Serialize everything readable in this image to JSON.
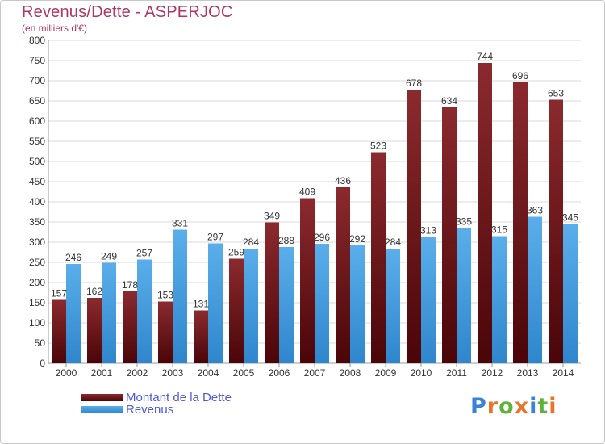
{
  "title": "Revenus/Dette - ASPERJOC",
  "subtitle": "(en milliers d'€)",
  "colors": {
    "debt_top": "#8b2a2e",
    "debt_bottom": "#4a0508",
    "revenue_top": "#5aaeea",
    "revenue_bottom": "#2f86cc",
    "grid": "#d8d8d8",
    "title": "#b23460",
    "legend_text": "#4d5bd9"
  },
  "logo": {
    "letters": [
      "P",
      "r",
      "o",
      "x",
      "i",
      "t",
      "i"
    ],
    "colors": [
      "#3b82d6",
      "#e8742a",
      "#5fb33a",
      "#e8742a",
      "#3b82d6",
      "#5fb33a",
      "#e8742a"
    ]
  },
  "chart_data": {
    "type": "bar",
    "title": "Revenus/Dette - ASPERJOC",
    "subtitle": "(en milliers d'€)",
    "categories": [
      "2000",
      "2001",
      "2002",
      "2003",
      "2004",
      "2005",
      "2006",
      "2007",
      "2008",
      "2009",
      "2010",
      "2011",
      "2012",
      "2013",
      "2014"
    ],
    "series": [
      {
        "name": "Montant de la Dette",
        "values": [
          157,
          162,
          178,
          153,
          131,
          259,
          349,
          409,
          436,
          523,
          678,
          634,
          744,
          696,
          653
        ]
      },
      {
        "name": "Revenus",
        "values": [
          246,
          249,
          257,
          331,
          297,
          284,
          288,
          296,
          292,
          284,
          313,
          335,
          315,
          363,
          345
        ]
      }
    ],
    "ylim": [
      0,
      800
    ],
    "yticks": [
      0,
      50,
      100,
      150,
      200,
      250,
      300,
      350,
      400,
      450,
      500,
      550,
      600,
      650,
      700,
      750,
      800
    ],
    "grid": true,
    "legend_placement": "bottom-left"
  }
}
